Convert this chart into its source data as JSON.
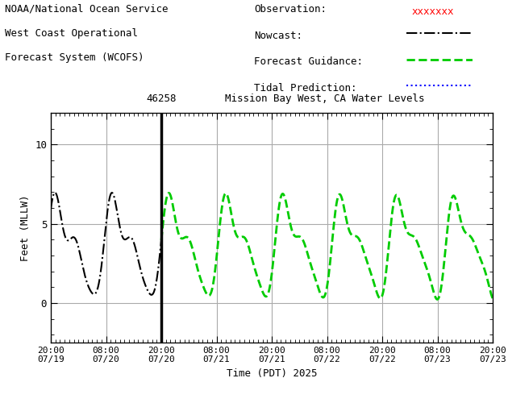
{
  "title": "Mission Bay West, CA Water Levels",
  "station_id": "46258",
  "ylabel": "Feet (MLLW)",
  "xlabel": "Time (PDT) 2025",
  "header_line1": "NOAA/National Ocean Service",
  "header_line2": "West Coast Operational",
  "header_line3": "Forecast System (WCOFS)",
  "ylim": [
    -2.5,
    12
  ],
  "yticks": [
    0,
    5,
    10
  ],
  "background_color": "#ffffff",
  "grid_color": "#aaaaaa",
  "vline_x_hours": 24,
  "nowcast_color": "#000000",
  "forecast_color": "#00cc00",
  "observation_color": "#ff0000",
  "tidal_color": "#0000ff",
  "tick_labels": [
    "20:00\n07/19",
    "08:00\n07/20",
    "20:00\n07/20",
    "08:00\n07/21",
    "20:00\n07/21",
    "08:00\n07/22",
    "20:00\n07/22",
    "08:00\n07/23",
    "20:00\n07/23"
  ]
}
